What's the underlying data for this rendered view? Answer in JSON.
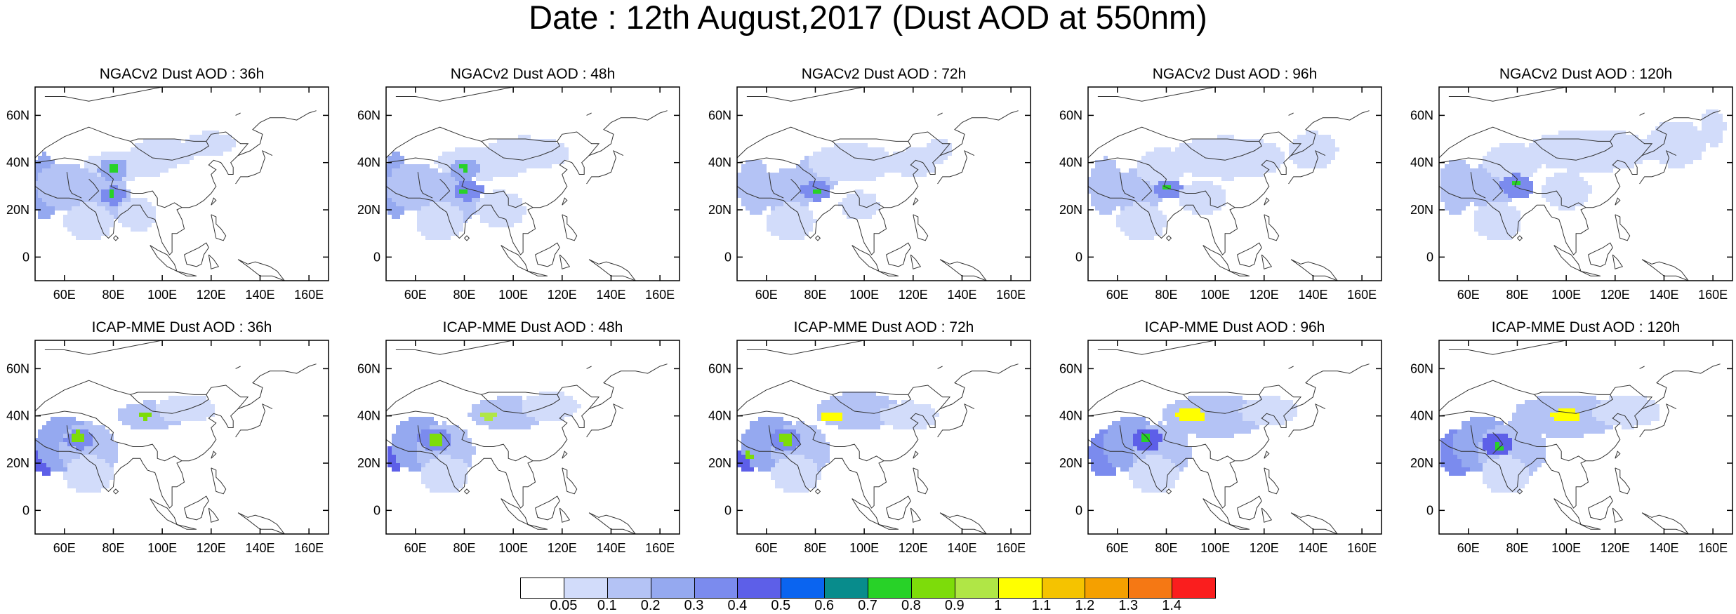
{
  "title": "Date : 12th August,2017 (Dust AOD at 550nm)",
  "row_titles": [
    [
      "NGACv2 Dust AOD : 36h",
      "NGACv2 Dust AOD : 48h",
      "NGACv2 Dust AOD : 72h",
      "NGACv2 Dust AOD : 96h",
      "NGACv2 Dust AOD : 120h"
    ],
    [
      "ICAP-MME Dust AOD : 36h",
      "ICAP-MME Dust AOD : 48h",
      "ICAP-MME Dust AOD : 72h",
      "ICAP-MME Dust AOD : 96h",
      "ICAP-MME Dust AOD : 120h"
    ]
  ],
  "lat_ticks": [
    "60N",
    "40N",
    "20N",
    "0"
  ],
  "lat_values": [
    60,
    40,
    20,
    0
  ],
  "lon_ticks": [
    "60E",
    "80E",
    "100E",
    "120E",
    "140E",
    "160E"
  ],
  "lon_values": [
    60,
    80,
    100,
    120,
    140,
    160
  ],
  "map_extent": {
    "lon": [
      48,
      168
    ],
    "lat": [
      -10,
      72
    ]
  },
  "colorbar": {
    "colors": [
      "#ffffff",
      "#d2dcfa",
      "#b4c3f5",
      "#95a9f0",
      "#7b8bee",
      "#5d5fe8",
      "#0a64f0",
      "#088c8c",
      "#28d228",
      "#7ddc0a",
      "#b0e646",
      "#ffff00",
      "#f5c300",
      "#f5a000",
      "#f57814",
      "#fa1e1e"
    ],
    "labels": [
      "0.05",
      "0.1",
      "0.2",
      "0.3",
      "0.4",
      "0.5",
      "0.6",
      "0.7",
      "0.8",
      "0.9",
      "1",
      "1.1",
      "1.2",
      "1.3",
      "1.4"
    ]
  },
  "panels": [
    {
      "blobs": [
        {
          "lon": 52,
          "lat": 30,
          "rx": 6,
          "ry": 14,
          "c": 3
        },
        {
          "lon": 60,
          "lat": 30,
          "rx": 12,
          "ry": 10,
          "c": 2
        },
        {
          "lon": 75,
          "lat": 25,
          "rx": 12,
          "ry": 11,
          "c": 2
        },
        {
          "lon": 86,
          "lat": 39,
          "rx": 18,
          "ry": 6,
          "c": 1
        },
        {
          "lon": 80,
          "lat": 37,
          "rx": 6,
          "ry": 5,
          "c": 3
        },
        {
          "lon": 80,
          "lat": 26,
          "rx": 5,
          "ry": 4,
          "c": 4
        },
        {
          "lon": 100,
          "lat": 44,
          "rx": 14,
          "ry": 6,
          "c": 1
        },
        {
          "lon": 120,
          "lat": 48,
          "rx": 10,
          "ry": 5,
          "c": 1
        },
        {
          "lon": 70,
          "lat": 15,
          "rx": 10,
          "ry": 8,
          "c": 1
        },
        {
          "lon": 90,
          "lat": 18,
          "rx": 8,
          "ry": 7,
          "c": 1
        },
        {
          "lon": 80,
          "lat": 38,
          "rx": 1.5,
          "ry": 2,
          "c": 8
        },
        {
          "lon": 79,
          "lat": 27,
          "rx": 1.5,
          "ry": 1.5,
          "c": 8
        }
      ]
    },
    {
      "blobs": [
        {
          "lon": 52,
          "lat": 30,
          "rx": 6,
          "ry": 14,
          "c": 3
        },
        {
          "lon": 60,
          "lat": 30,
          "rx": 12,
          "ry": 10,
          "c": 2
        },
        {
          "lon": 75,
          "lat": 25,
          "rx": 12,
          "ry": 11,
          "c": 2
        },
        {
          "lon": 88,
          "lat": 40,
          "rx": 20,
          "ry": 7,
          "c": 1
        },
        {
          "lon": 80,
          "lat": 37,
          "rx": 6,
          "ry": 5,
          "c": 3
        },
        {
          "lon": 82,
          "lat": 28,
          "rx": 6,
          "ry": 4,
          "c": 4
        },
        {
          "lon": 105,
          "lat": 44,
          "rx": 18,
          "ry": 7,
          "c": 1
        },
        {
          "lon": 95,
          "lat": 20,
          "rx": 10,
          "ry": 8,
          "c": 1
        },
        {
          "lon": 70,
          "lat": 15,
          "rx": 10,
          "ry": 8,
          "c": 1
        },
        {
          "lon": 80,
          "lat": 38,
          "rx": 1.5,
          "ry": 1.5,
          "c": 8
        },
        {
          "lon": 80,
          "lat": 28,
          "rx": 2,
          "ry": 1.2,
          "c": 8
        }
      ]
    },
    {
      "blobs": [
        {
          "lon": 55,
          "lat": 30,
          "rx": 7,
          "ry": 12,
          "c": 2
        },
        {
          "lon": 68,
          "lat": 28,
          "rx": 12,
          "ry": 9,
          "c": 2
        },
        {
          "lon": 82,
          "lat": 36,
          "rx": 10,
          "ry": 8,
          "c": 2
        },
        {
          "lon": 95,
          "lat": 40,
          "rx": 18,
          "ry": 8,
          "c": 1
        },
        {
          "lon": 80,
          "lat": 28,
          "rx": 6,
          "ry": 4,
          "c": 4
        },
        {
          "lon": 120,
          "lat": 40,
          "rx": 10,
          "ry": 6,
          "c": 1
        },
        {
          "lon": 70,
          "lat": 15,
          "rx": 10,
          "ry": 8,
          "c": 1
        },
        {
          "lon": 98,
          "lat": 22,
          "rx": 8,
          "ry": 6,
          "c": 1
        },
        {
          "lon": 130,
          "lat": 45,
          "rx": 6,
          "ry": 5,
          "c": 1
        },
        {
          "lon": 81,
          "lat": 28,
          "rx": 2,
          "ry": 1.2,
          "c": 8
        }
      ]
    },
    {
      "blobs": [
        {
          "lon": 55,
          "lat": 30,
          "rx": 7,
          "ry": 12,
          "c": 2
        },
        {
          "lon": 68,
          "lat": 28,
          "rx": 12,
          "ry": 9,
          "c": 2
        },
        {
          "lon": 78,
          "lat": 38,
          "rx": 10,
          "ry": 8,
          "c": 1
        },
        {
          "lon": 105,
          "lat": 42,
          "rx": 24,
          "ry": 9,
          "c": 1
        },
        {
          "lon": 81,
          "lat": 29,
          "rx": 6,
          "ry": 4,
          "c": 4
        },
        {
          "lon": 140,
          "lat": 45,
          "rx": 10,
          "ry": 8,
          "c": 1
        },
        {
          "lon": 70,
          "lat": 15,
          "rx": 10,
          "ry": 8,
          "c": 1
        },
        {
          "lon": 95,
          "lat": 25,
          "rx": 10,
          "ry": 7,
          "c": 1
        },
        {
          "lon": 80,
          "lat": 29,
          "rx": 2,
          "ry": 1.2,
          "c": 8
        }
      ]
    },
    {
      "blobs": [
        {
          "lon": 55,
          "lat": 30,
          "rx": 7,
          "ry": 12,
          "c": 2
        },
        {
          "lon": 68,
          "lat": 30,
          "rx": 12,
          "ry": 9,
          "c": 2
        },
        {
          "lon": 78,
          "lat": 40,
          "rx": 12,
          "ry": 8,
          "c": 1
        },
        {
          "lon": 110,
          "lat": 45,
          "rx": 26,
          "ry": 9,
          "c": 1
        },
        {
          "lon": 80,
          "lat": 30,
          "rx": 7,
          "ry": 5,
          "c": 4
        },
        {
          "lon": 145,
          "lat": 48,
          "rx": 12,
          "ry": 10,
          "c": 1
        },
        {
          "lon": 72,
          "lat": 15,
          "rx": 10,
          "ry": 8,
          "c": 1
        },
        {
          "lon": 100,
          "lat": 28,
          "rx": 10,
          "ry": 8,
          "c": 1
        },
        {
          "lon": 160,
          "lat": 55,
          "rx": 5,
          "ry": 8,
          "c": 1
        },
        {
          "lon": 79,
          "lat": 31,
          "rx": 2,
          "ry": 1.2,
          "c": 8
        }
      ]
    },
    {
      "blobs": [
        {
          "lon": 52,
          "lat": 22,
          "rx": 5,
          "ry": 7,
          "c": 5
        },
        {
          "lon": 60,
          "lat": 28,
          "rx": 12,
          "ry": 12,
          "c": 3
        },
        {
          "lon": 70,
          "lat": 25,
          "rx": 12,
          "ry": 12,
          "c": 2
        },
        {
          "lon": 95,
          "lat": 40,
          "rx": 14,
          "ry": 6,
          "c": 2
        },
        {
          "lon": 110,
          "lat": 43,
          "rx": 12,
          "ry": 6,
          "c": 1
        },
        {
          "lon": 66,
          "lat": 30,
          "rx": 6,
          "ry": 4,
          "c": 4
        },
        {
          "lon": 70,
          "lat": 15,
          "rx": 10,
          "ry": 8,
          "c": 1
        },
        {
          "lon": 66,
          "lat": 31,
          "rx": 3,
          "ry": 2.5,
          "c": 9
        },
        {
          "lon": 93,
          "lat": 40,
          "rx": 3,
          "ry": 1.5,
          "c": 9
        }
      ]
    },
    {
      "blobs": [
        {
          "lon": 52,
          "lat": 22,
          "rx": 4,
          "ry": 6,
          "c": 5
        },
        {
          "lon": 62,
          "lat": 28,
          "rx": 12,
          "ry": 12,
          "c": 3
        },
        {
          "lon": 72,
          "lat": 25,
          "rx": 12,
          "ry": 12,
          "c": 2
        },
        {
          "lon": 98,
          "lat": 41,
          "rx": 16,
          "ry": 7,
          "c": 2
        },
        {
          "lon": 115,
          "lat": 44,
          "rx": 12,
          "ry": 6,
          "c": 1
        },
        {
          "lon": 68,
          "lat": 30,
          "rx": 7,
          "ry": 5,
          "c": 4
        },
        {
          "lon": 72,
          "lat": 15,
          "rx": 10,
          "ry": 8,
          "c": 1
        },
        {
          "lon": 68,
          "lat": 30,
          "rx": 3,
          "ry": 3,
          "c": 9
        },
        {
          "lon": 90,
          "lat": 40,
          "rx": 3,
          "ry": 1.5,
          "c": 10
        }
      ]
    },
    {
      "blobs": [
        {
          "lon": 52,
          "lat": 22,
          "rx": 4,
          "ry": 6,
          "c": 5
        },
        {
          "lon": 62,
          "lat": 28,
          "rx": 12,
          "ry": 12,
          "c": 3
        },
        {
          "lon": 74,
          "lat": 25,
          "rx": 12,
          "ry": 12,
          "c": 2
        },
        {
          "lon": 98,
          "lat": 42,
          "rx": 18,
          "ry": 8,
          "c": 2
        },
        {
          "lon": 118,
          "lat": 40,
          "rx": 12,
          "ry": 6,
          "c": 1
        },
        {
          "lon": 68,
          "lat": 30,
          "rx": 6,
          "ry": 5,
          "c": 4
        },
        {
          "lon": 72,
          "lat": 15,
          "rx": 10,
          "ry": 8,
          "c": 1
        },
        {
          "lon": 68,
          "lat": 30,
          "rx": 2.5,
          "ry": 2.5,
          "c": 9
        },
        {
          "lon": 87,
          "lat": 40,
          "rx": 5,
          "ry": 2,
          "c": 11
        },
        {
          "lon": 53,
          "lat": 23,
          "rx": 1.5,
          "ry": 2,
          "c": 9
        }
      ]
    },
    {
      "blobs": [
        {
          "lon": 55,
          "lat": 24,
          "rx": 7,
          "ry": 10,
          "c": 4
        },
        {
          "lon": 66,
          "lat": 28,
          "rx": 12,
          "ry": 12,
          "c": 3
        },
        {
          "lon": 78,
          "lat": 25,
          "rx": 12,
          "ry": 12,
          "c": 2
        },
        {
          "lon": 100,
          "lat": 40,
          "rx": 22,
          "ry": 9,
          "c": 2
        },
        {
          "lon": 122,
          "lat": 42,
          "rx": 12,
          "ry": 6,
          "c": 1
        },
        {
          "lon": 72,
          "lat": 30,
          "rx": 6,
          "ry": 5,
          "c": 5
        },
        {
          "lon": 75,
          "lat": 15,
          "rx": 10,
          "ry": 8,
          "c": 1
        },
        {
          "lon": 90,
          "lat": 40,
          "rx": 6,
          "ry": 3,
          "c": 11
        },
        {
          "lon": 72,
          "lat": 31,
          "rx": 2,
          "ry": 2,
          "c": 8
        }
      ]
    },
    {
      "blobs": [
        {
          "lon": 55,
          "lat": 24,
          "rx": 7,
          "ry": 10,
          "c": 4
        },
        {
          "lon": 66,
          "lat": 28,
          "rx": 12,
          "ry": 12,
          "c": 3
        },
        {
          "lon": 78,
          "lat": 25,
          "rx": 14,
          "ry": 12,
          "c": 2
        },
        {
          "lon": 100,
          "lat": 40,
          "rx": 22,
          "ry": 9,
          "c": 2
        },
        {
          "lon": 125,
          "lat": 42,
          "rx": 14,
          "ry": 7,
          "c": 1
        },
        {
          "lon": 72,
          "lat": 28,
          "rx": 6,
          "ry": 5,
          "c": 5
        },
        {
          "lon": 75,
          "lat": 15,
          "rx": 10,
          "ry": 8,
          "c": 1
        },
        {
          "lon": 100,
          "lat": 40,
          "rx": 6,
          "ry": 3,
          "c": 11
        },
        {
          "lon": 72,
          "lat": 27,
          "rx": 2,
          "ry": 1.5,
          "c": 8
        }
      ]
    }
  ]
}
